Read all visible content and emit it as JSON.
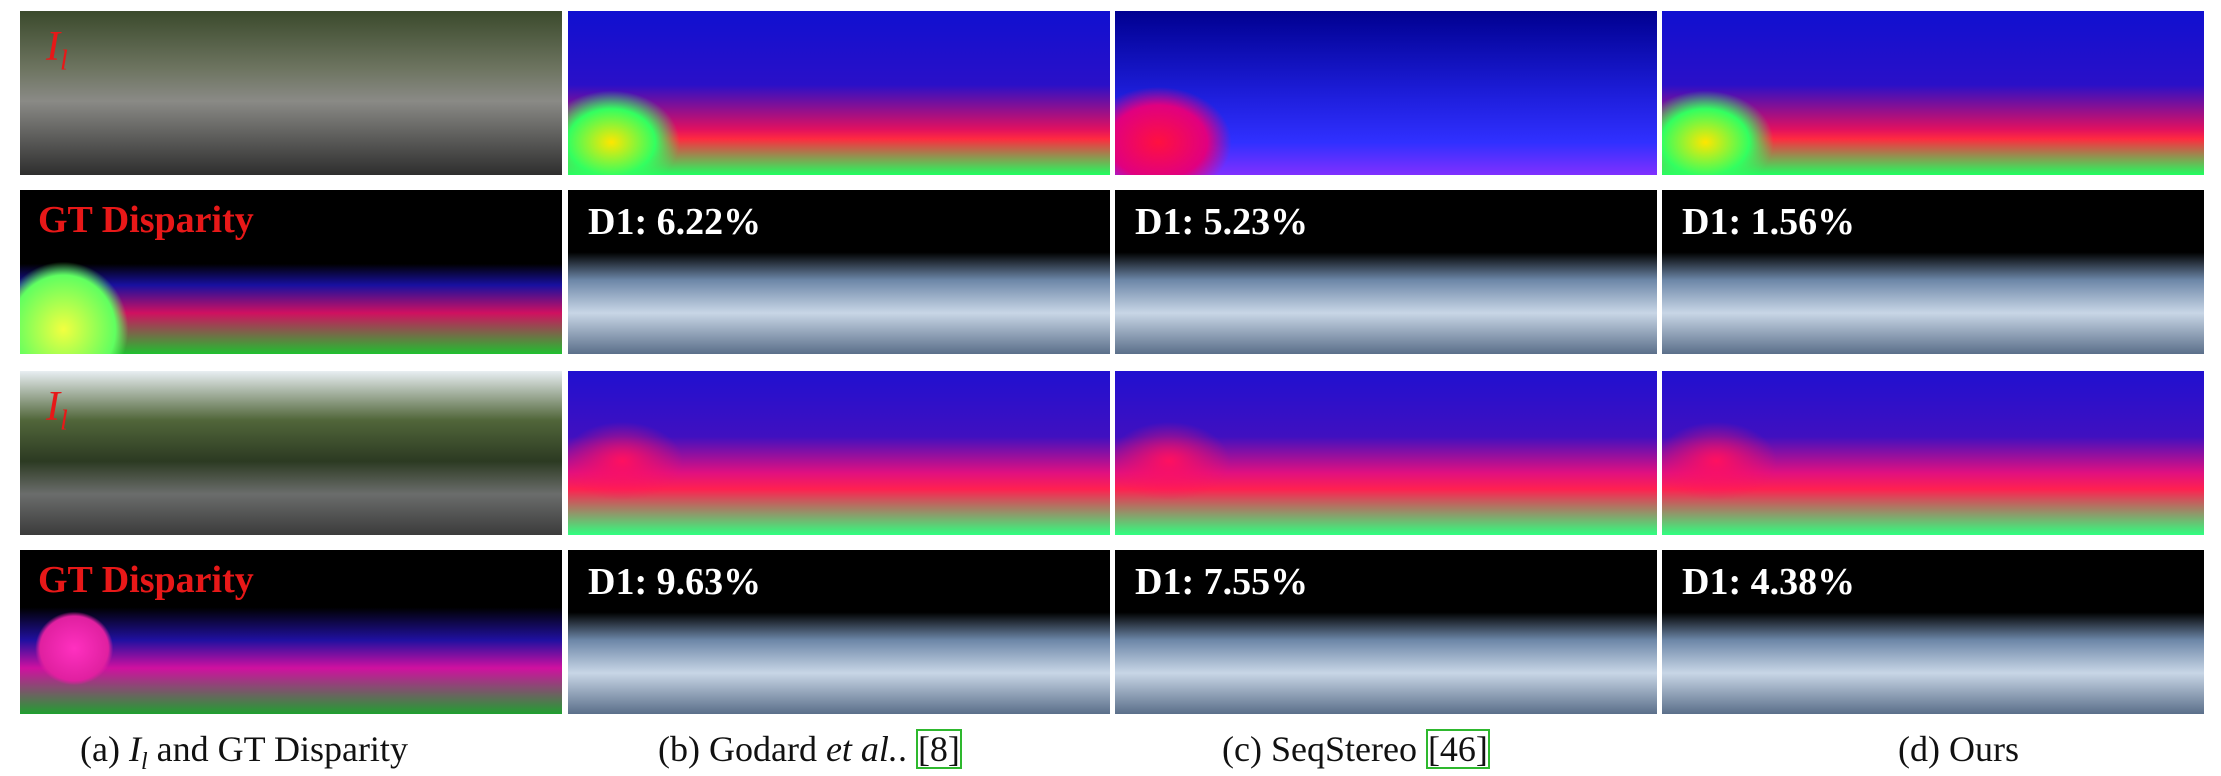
{
  "rows": [
    {
      "label": "I",
      "label_subscript": "l"
    },
    {
      "label": "GT Disparity",
      "d1": [
        "D1: 6.22%",
        "D1: 5.23%",
        "D1: 1.56%"
      ]
    },
    {
      "label": "I",
      "label_subscript": "l"
    },
    {
      "label": "GT Disparity",
      "d1": [
        "D1: 9.63%",
        "D1: 7.55%",
        "D1: 4.38%"
      ]
    }
  ],
  "captions": [
    {
      "letter": "(a)",
      "math": "I",
      "math_subscript": "l",
      "rest": "and GT Disparity"
    },
    {
      "letter": "(b)",
      "text": "Godard",
      "italic": "et al.",
      "punct": ".",
      "ref": "[8]"
    },
    {
      "letter": "(c)",
      "text": "SeqStereo",
      "ref": "[46]"
    },
    {
      "letter": "(d)",
      "text": "Ours"
    }
  ]
}
